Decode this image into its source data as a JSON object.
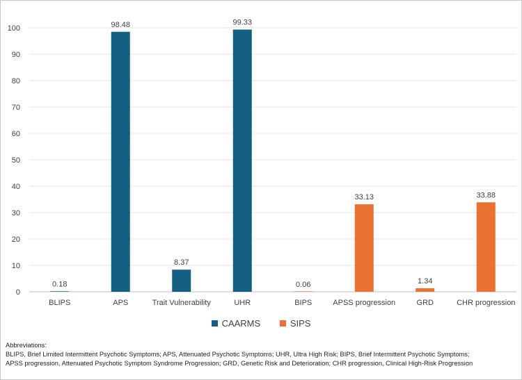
{
  "chart_data": {
    "type": "bar",
    "title": "",
    "xlabel": "",
    "ylabel": "",
    "ylim": [
      0,
      100
    ],
    "ytick_step": 10,
    "grid": true,
    "categories": [
      "BLIPS",
      "APS",
      "Trait Vulnerability",
      "UHR",
      "BIPS",
      "APSS progression",
      "GRD",
      "CHR progression"
    ],
    "values": [
      0.18,
      98.48,
      8.37,
      99.33,
      0.06,
      33.13,
      1.34,
      33.88
    ],
    "value_labels": [
      "0.18",
      "98.48",
      "8.37",
      "99.33",
      "0.06",
      "33.13",
      "1.34",
      "33.88"
    ],
    "bar_series": [
      "CAARMS",
      "CAARMS",
      "CAARMS",
      "CAARMS",
      "SIPS",
      "SIPS",
      "SIPS",
      "SIPS"
    ],
    "series": [
      {
        "name": "CAARMS",
        "color": "#156082"
      },
      {
        "name": "SIPS",
        "color": "#e97132"
      }
    ],
    "legend_position": "bottom"
  },
  "notes": {
    "heading": "Abbreviations:",
    "line1": "BLIPS, Brief Limited Intermittent Psychotic Symptoms; APS, Attenuated Psychotic Symptoms; UHR, Ultra High Risk; BIPS, Brief Intermittent Psychotic Symptoms;",
    "line2": "APSS progression, Attenuated Psychotic Symptom Syndrome Progression; GRD, Genetic Risk and Deterioration; CHR progression, Clinical High-Risk Progression"
  }
}
